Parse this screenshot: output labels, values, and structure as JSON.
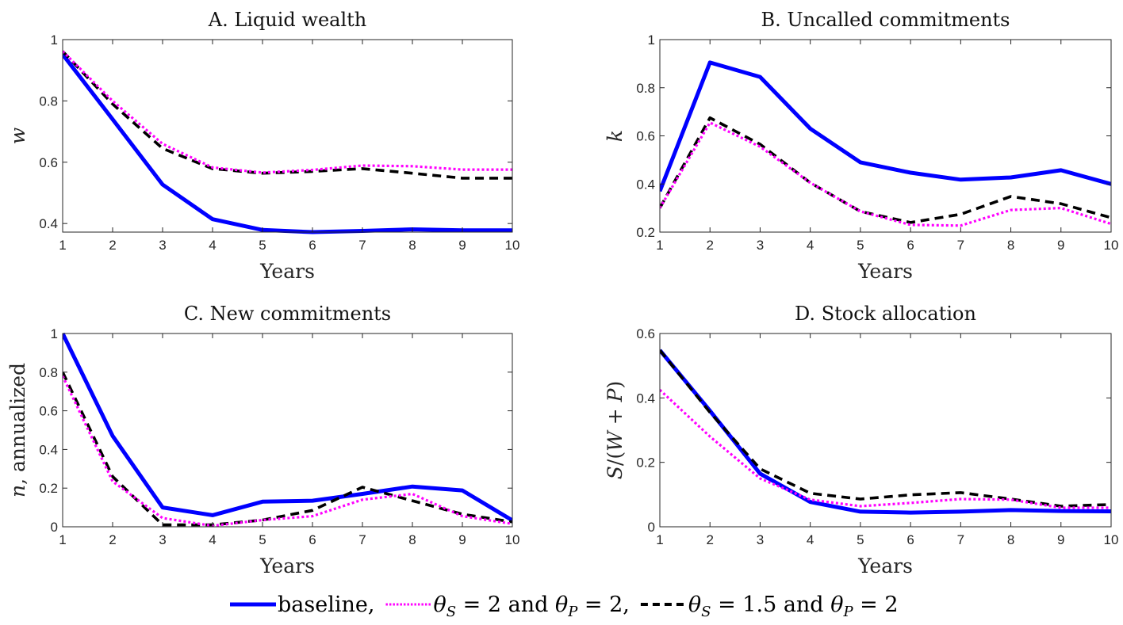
{
  "legend": {
    "entries": [
      {
        "key": "baseline",
        "label": "baseline,",
        "color": "#0000ff",
        "style": "solid"
      },
      {
        "key": "alt1",
        "label_parts": [
          "θ",
          "S",
          " = 2 and ",
          "θ",
          "P",
          " = 2,"
        ],
        "color": "#ff00ff",
        "style": "dotted"
      },
      {
        "key": "alt2",
        "label_parts": [
          "θ",
          "S",
          " = 1.5 and ",
          "θ",
          "P",
          " = 2"
        ],
        "color": "#000000",
        "style": "dashed"
      }
    ]
  },
  "chart_data": [
    {
      "type": "line",
      "panel": "A",
      "title": "A. Liquid wealth",
      "xlabel": "Years",
      "ylabel": "w",
      "xlim": [
        1,
        10
      ],
      "ylim": [
        0.372,
        1
      ],
      "xticks": [
        1,
        2,
        3,
        4,
        5,
        6,
        7,
        8,
        9,
        10
      ],
      "yticks": [
        0.4,
        0.6,
        0.8,
        1
      ],
      "ytick_labels": [
        "0.4",
        "0.6",
        "0.8",
        "1"
      ],
      "grid": false,
      "x": [
        1,
        2,
        3,
        4,
        5,
        6,
        7,
        8,
        9,
        10
      ],
      "series": [
        {
          "name": "baseline",
          "values": [
            0.952,
            0.74,
            0.527,
            0.414,
            0.379,
            0.372,
            0.376,
            0.381,
            0.378,
            0.378
          ]
        },
        {
          "name": "θS = 2 and θP = 2",
          "values": [
            0.962,
            0.8,
            0.66,
            0.583,
            0.566,
            0.575,
            0.589,
            0.587,
            0.576,
            0.576
          ]
        },
        {
          "name": "θS = 1.5 and θP = 2",
          "values": [
            0.962,
            0.79,
            0.645,
            0.579,
            0.564,
            0.57,
            0.579,
            0.564,
            0.548,
            0.548
          ]
        }
      ]
    },
    {
      "type": "line",
      "panel": "B",
      "title": "B. Uncalled commitments",
      "xlabel": "Years",
      "ylabel": "k",
      "xlim": [
        1,
        10
      ],
      "ylim": [
        0.2,
        1
      ],
      "xticks": [
        1,
        2,
        3,
        4,
        5,
        6,
        7,
        8,
        9,
        10
      ],
      "yticks": [
        0.2,
        0.4,
        0.6,
        0.8,
        1
      ],
      "ytick_labels": [
        "0.2",
        "0.4",
        "0.6",
        "0.8",
        "1"
      ],
      "grid": false,
      "x": [
        1,
        2,
        3,
        4,
        5,
        6,
        7,
        8,
        9,
        10
      ],
      "series": [
        {
          "name": "baseline",
          "values": [
            0.37,
            0.905,
            0.845,
            0.63,
            0.49,
            0.447,
            0.418,
            0.427,
            0.457,
            0.4
          ]
        },
        {
          "name": "θS = 2 and θP = 2",
          "values": [
            0.3,
            0.655,
            0.555,
            0.405,
            0.286,
            0.23,
            0.227,
            0.292,
            0.3,
            0.234
          ]
        },
        {
          "name": "θS = 1.5 and θP = 2",
          "values": [
            0.3,
            0.675,
            0.565,
            0.405,
            0.286,
            0.24,
            0.274,
            0.348,
            0.318,
            0.26
          ]
        }
      ]
    },
    {
      "type": "line",
      "panel": "C",
      "title": "C. New commitments",
      "xlabel": "Years",
      "ylabel": "n, annualized",
      "xlim": [
        1,
        10
      ],
      "ylim": [
        0,
        1
      ],
      "xticks": [
        1,
        2,
        3,
        4,
        5,
        6,
        7,
        8,
        9,
        10
      ],
      "yticks": [
        0,
        0.2,
        0.4,
        0.6,
        0.8,
        1
      ],
      "ytick_labels": [
        "0",
        "0.2",
        "0.4",
        "0.6",
        "0.8",
        "1"
      ],
      "grid": false,
      "x": [
        1,
        2,
        3,
        4,
        5,
        6,
        7,
        8,
        9,
        10
      ],
      "series": [
        {
          "name": "baseline",
          "values": [
            1.0,
            0.47,
            0.1,
            0.06,
            0.13,
            0.135,
            0.17,
            0.208,
            0.188,
            0.033
          ]
        },
        {
          "name": "θS = 2 and θP = 2",
          "values": [
            0.78,
            0.235,
            0.045,
            0.005,
            0.035,
            0.055,
            0.14,
            0.17,
            0.055,
            0.015
          ]
        },
        {
          "name": "θS = 1.5 and θP = 2",
          "values": [
            0.8,
            0.26,
            0.01,
            0.01,
            0.035,
            0.085,
            0.205,
            0.135,
            0.065,
            0.025
          ]
        }
      ]
    },
    {
      "type": "line",
      "panel": "D",
      "title": "D. Stock allocation",
      "xlabel": "Years",
      "ylabel": "S/(W + P)",
      "xlim": [
        1,
        10
      ],
      "ylim": [
        0,
        0.6
      ],
      "xticks": [
        1,
        2,
        3,
        4,
        5,
        6,
        7,
        8,
        9,
        10
      ],
      "yticks": [
        0,
        0.2,
        0.4,
        0.6
      ],
      "ytick_labels": [
        "0",
        "0.2",
        "0.4",
        "0.6"
      ],
      "grid": false,
      "x": [
        1,
        2,
        3,
        4,
        5,
        6,
        7,
        8,
        9,
        10
      ],
      "series": [
        {
          "name": "baseline",
          "values": [
            0.548,
            0.36,
            0.165,
            0.077,
            0.047,
            0.044,
            0.047,
            0.052,
            0.049,
            0.048
          ]
        },
        {
          "name": "θS = 2 and θP = 2",
          "values": [
            0.425,
            0.28,
            0.15,
            0.084,
            0.064,
            0.074,
            0.086,
            0.084,
            0.059,
            0.059
          ]
        },
        {
          "name": "θS = 1.5 and θP = 2",
          "values": [
            0.548,
            0.355,
            0.18,
            0.104,
            0.086,
            0.099,
            0.106,
            0.086,
            0.064,
            0.069
          ]
        }
      ]
    }
  ]
}
